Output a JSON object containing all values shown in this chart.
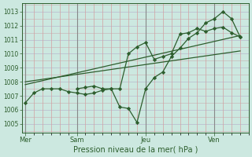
{
  "xlabel": "Pression niveau de la mer( hPa )",
  "bg_color": "#cce8e0",
  "line_color": "#2d5e2d",
  "ylim": [
    1004.4,
    1013.6
  ],
  "yticks": [
    1005,
    1006,
    1007,
    1008,
    1009,
    1010,
    1011,
    1012,
    1013
  ],
  "xlim": [
    -0.2,
    13.0
  ],
  "day_positions": [
    0,
    3,
    7,
    11
  ],
  "day_labels": [
    "Mer",
    "Sam",
    "Jeu",
    "Ven"
  ],
  "zigzag_x": [
    0,
    0.5,
    1.0,
    1.5,
    2.0,
    2.5,
    3.0,
    3.5,
    4.0,
    4.5,
    5.0,
    5.5,
    6.0,
    6.5,
    7.0,
    7.5,
    8.0,
    8.5,
    9.0,
    9.5,
    10.0,
    10.5,
    11.0,
    11.5,
    12.0,
    12.5
  ],
  "zigzag_y": [
    1006.5,
    1007.2,
    1007.5,
    1007.5,
    1007.5,
    1007.3,
    1007.2,
    1007.1,
    1007.2,
    1007.4,
    1007.5,
    1006.2,
    1006.1,
    1005.1,
    1007.5,
    1008.3,
    1008.7,
    1009.8,
    1010.4,
    1011.1,
    1011.5,
    1012.2,
    1012.5,
    1013.0,
    1012.5,
    1011.2
  ],
  "smooth_x": [
    3.0,
    3.5,
    4.0,
    4.5,
    5.0,
    5.5,
    6.0,
    6.5,
    7.0,
    7.5,
    8.0,
    8.5,
    9.0,
    9.5,
    10.0,
    10.5,
    11.0,
    11.5,
    12.0,
    12.5
  ],
  "smooth_y": [
    1007.5,
    1007.6,
    1007.7,
    1007.5,
    1007.5,
    1007.5,
    1010.0,
    1010.5,
    1010.8,
    1009.6,
    1009.8,
    1010.0,
    1011.4,
    1011.5,
    1011.8,
    1011.6,
    1011.8,
    1011.9,
    1011.5,
    1011.2
  ],
  "trend1_x": [
    0,
    12.5
  ],
  "trend1_y": [
    1007.8,
    1011.3
  ],
  "trend2_x": [
    0,
    12.5
  ],
  "trend2_y": [
    1008.0,
    1010.2
  ]
}
